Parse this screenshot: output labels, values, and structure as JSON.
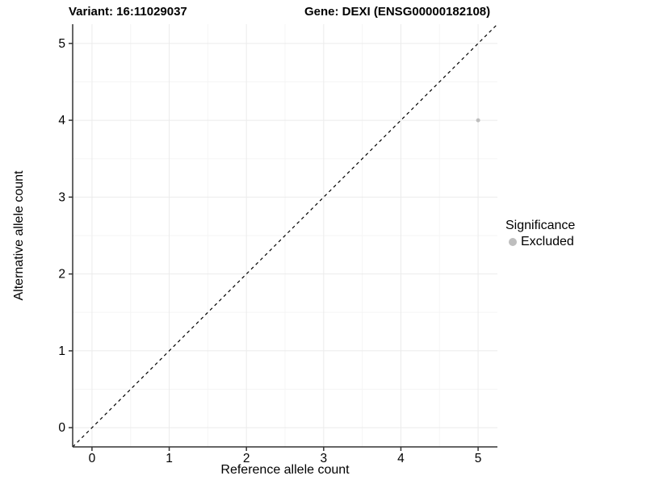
{
  "titles": {
    "left": "Variant: 16:11029037",
    "right": "Gene: DEXI (ENSG00000182108)"
  },
  "chart_data": {
    "type": "scatter",
    "title_left": "Variant: 16:11029037",
    "title_right": "Gene: DEXI (ENSG00000182108)",
    "xlabel": "Reference allele count",
    "ylabel": "Alternative allele count",
    "xlim": [
      -0.25,
      5.25
    ],
    "ylim": [
      -0.25,
      5.25
    ],
    "xticks": [
      0,
      1,
      2,
      3,
      4,
      5
    ],
    "yticks": [
      0,
      1,
      2,
      3,
      4,
      5
    ],
    "minor_gridlines": true,
    "grid": true,
    "points": [
      {
        "x": 5,
        "y": 4,
        "series": "Excluded"
      }
    ],
    "reference_line": {
      "type": "abline",
      "slope": 1,
      "intercept": 0,
      "style": "dashed"
    },
    "legend": {
      "title": "Significance",
      "position": "right",
      "items": [
        {
          "label": "Excluded",
          "color": "#bebebe"
        }
      ]
    },
    "colors": {
      "background": "#ffffff",
      "grid_major": "#ebebeb",
      "grid_minor": "#f5f5f5",
      "axis_line": "#333333",
      "tick_mark": "#333333",
      "tick_label": "#000000",
      "reference_line": "#000000",
      "point": "#bebebe"
    },
    "point_radius": 2.5
  }
}
